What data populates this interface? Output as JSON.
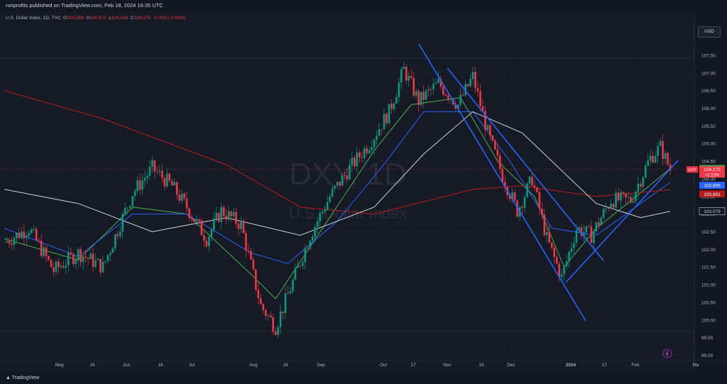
{
  "header": {
    "published": "runprofits published on TradingView.com, Feb 18, 2024 16:35 UTC"
  },
  "legend": {
    "name": "U.S. Dollar Index, 1D, TVC",
    "o_label": "O",
    "o": "104.298",
    "h_label": "H",
    "h": "104.672",
    "l_label": "L",
    "l": "104.168",
    "c_label": "C",
    "c": "104.275",
    "change": "-0.003 (-0.00%)"
  },
  "currency_button": "USD",
  "watermark": {
    "symbol": "DXY, 1D",
    "name": "U.S. Dollar Index"
  },
  "footer": {
    "brand": "TradingView"
  },
  "price_tags": {
    "ma_green": "104.291",
    "symbol": "DXY",
    "last_price": "104.275",
    "change_pct": "+2.22%",
    "ma_blue": "103.895",
    "ma_red": "103.691",
    "ma_white": "103.079"
  },
  "colors": {
    "background": "#161a25",
    "up": "#089981",
    "down": "#f23645",
    "ma_green": "#4caf50",
    "ma_blue": "#2962ff",
    "ma_red": "#b71c1c",
    "ma_white": "#d1d4dc",
    "channel": "#2962ff"
  },
  "chart_data": {
    "type": "candlestick",
    "y_ticks": [
      "107.50",
      "107.00",
      "106.50",
      "106.00",
      "105.50",
      "105.00",
      "104.50",
      "104.00",
      "103.50",
      "103.00",
      "102.50",
      "102.00",
      "101.50",
      "101.00",
      "100.50",
      "100.00",
      "99.50",
      "99.00"
    ],
    "x_ticks": [
      "May",
      "16",
      "Jun",
      "16",
      "Jul",
      "Aug",
      "16",
      "Sep",
      "Oct",
      "17",
      "Nov",
      "16",
      "Dec",
      "2024",
      "17",
      "Feb",
      "Ma"
    ],
    "ylim": [
      98.85,
      107.9
    ],
    "price_points": [
      [
        0,
        102.2
      ],
      [
        10,
        102.6
      ],
      [
        20,
        101.4
      ],
      [
        30,
        101.9
      ],
      [
        40,
        101.5
      ],
      [
        52,
        103.6
      ],
      [
        60,
        104.3
      ],
      [
        68,
        103.8
      ],
      [
        74,
        103.2
      ],
      [
        82,
        102.3
      ],
      [
        88,
        103.1
      ],
      [
        96,
        102.7
      ],
      [
        104,
        100.4
      ],
      [
        110,
        99.8
      ],
      [
        116,
        100.9
      ],
      [
        124,
        102.4
      ],
      [
        132,
        103.5
      ],
      [
        140,
        104.3
      ],
      [
        148,
        105.0
      ],
      [
        156,
        105.9
      ],
      [
        162,
        107.1
      ],
      [
        168,
        106.2
      ],
      [
        176,
        106.7
      ],
      [
        184,
        106.1
      ],
      [
        190,
        106.9
      ],
      [
        196,
        105.3
      ],
      [
        202,
        104.1
      ],
      [
        208,
        103.1
      ],
      [
        214,
        104.0
      ],
      [
        220,
        102.3
      ],
      [
        226,
        101.2
      ],
      [
        232,
        102.6
      ],
      [
        238,
        102.4
      ],
      [
        246,
        103.4
      ],
      [
        254,
        103.4
      ],
      [
        262,
        104.6
      ],
      [
        266,
        104.9
      ],
      [
        270,
        104.27
      ]
    ],
    "series": [
      {
        "name": "ma_green",
        "values": [
          [
            0,
            102.3
          ],
          [
            30,
            101.7
          ],
          [
            52,
            103.2
          ],
          [
            74,
            103.0
          ],
          [
            100,
            101.3
          ],
          [
            110,
            100.6
          ],
          [
            130,
            102.7
          ],
          [
            150,
            104.8
          ],
          [
            165,
            106.1
          ],
          [
            185,
            106.3
          ],
          [
            200,
            104.5
          ],
          [
            215,
            103.5
          ],
          [
            227,
            101.5
          ],
          [
            240,
            102.6
          ],
          [
            258,
            103.6
          ],
          [
            270,
            104.29
          ]
        ]
      },
      {
        "name": "ma_blue",
        "values": [
          [
            0,
            102.6
          ],
          [
            30,
            101.8
          ],
          [
            52,
            103.0
          ],
          [
            74,
            103.0
          ],
          [
            100,
            101.9
          ],
          [
            115,
            101.6
          ],
          [
            135,
            102.8
          ],
          [
            155,
            104.5
          ],
          [
            170,
            105.9
          ],
          [
            190,
            105.9
          ],
          [
            205,
            104.5
          ],
          [
            222,
            102.6
          ],
          [
            240,
            102.4
          ],
          [
            258,
            103.3
          ],
          [
            270,
            103.9
          ]
        ]
      },
      {
        "name": "ma_red",
        "values": [
          [
            0,
            106.5
          ],
          [
            40,
            105.7
          ],
          [
            90,
            104.4
          ],
          [
            120,
            103.2
          ],
          [
            150,
            103.0
          ],
          [
            190,
            103.7
          ],
          [
            210,
            103.8
          ],
          [
            240,
            103.5
          ],
          [
            270,
            103.69
          ]
        ]
      },
      {
        "name": "ma_white",
        "values": [
          [
            0,
            103.7
          ],
          [
            30,
            103.3
          ],
          [
            60,
            102.5
          ],
          [
            90,
            102.9
          ],
          [
            120,
            102.4
          ],
          [
            150,
            103.2
          ],
          [
            170,
            104.7
          ],
          [
            190,
            105.9
          ],
          [
            210,
            105.3
          ],
          [
            240,
            103.3
          ],
          [
            258,
            102.9
          ],
          [
            270,
            103.08
          ]
        ]
      }
    ]
  }
}
